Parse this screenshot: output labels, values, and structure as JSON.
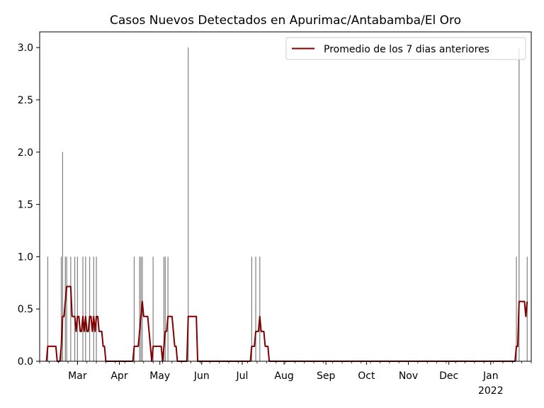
{
  "chart_data": {
    "type": "bar",
    "title": "Casos Nuevos Detectados en Apurimac/Antabamba/El Oro",
    "xlabel": "",
    "ylabel": "",
    "xlim": [
      "2021-02-01",
      "2022-01-31"
    ],
    "ylim": [
      0,
      3.15
    ],
    "y_ticks": [
      0.0,
      0.5,
      1.0,
      1.5,
      2.0,
      2.5,
      3.0
    ],
    "y_tick_labels": [
      "0.0",
      "0.5",
      "1.0",
      "1.5",
      "2.0",
      "2.5",
      "3.0"
    ],
    "x_ticks": [
      {
        "date": "2021-03-01",
        "label": "Mar"
      },
      {
        "date": "2021-04-01",
        "label": "Apr"
      },
      {
        "date": "2021-05-01",
        "label": "May"
      },
      {
        "date": "2021-06-01",
        "label": "Jun"
      },
      {
        "date": "2021-07-01",
        "label": "Jul"
      },
      {
        "date": "2021-08-01",
        "label": "Aug"
      },
      {
        "date": "2021-09-01",
        "label": "Sep"
      },
      {
        "date": "2021-10-01",
        "label": "Oct"
      },
      {
        "date": "2021-11-01",
        "label": "Nov"
      },
      {
        "date": "2021-12-01",
        "label": "Dec"
      },
      {
        "date": "2022-01-01",
        "label": "Jan",
        "sublabel": "2022"
      }
    ],
    "bar_color": "#808080",
    "line_color": "#800000",
    "legend": {
      "position": "upper right",
      "label": "Promedio de los 7 dias anteriores"
    },
    "daily_cases": [
      {
        "date": "2021-02-07",
        "value": 1
      },
      {
        "date": "2021-02-17",
        "value": 1
      },
      {
        "date": "2021-02-18",
        "value": 2
      },
      {
        "date": "2021-02-20",
        "value": 1
      },
      {
        "date": "2021-02-21",
        "value": 1
      },
      {
        "date": "2021-02-24",
        "value": 1
      },
      {
        "date": "2021-02-27",
        "value": 1
      },
      {
        "date": "2021-03-01",
        "value": 1
      },
      {
        "date": "2021-03-05",
        "value": 1
      },
      {
        "date": "2021-03-07",
        "value": 1
      },
      {
        "date": "2021-03-10",
        "value": 1
      },
      {
        "date": "2021-03-13",
        "value": 1
      },
      {
        "date": "2021-03-15",
        "value": 1
      },
      {
        "date": "2021-04-12",
        "value": 1
      },
      {
        "date": "2021-04-16",
        "value": 1
      },
      {
        "date": "2021-04-17",
        "value": 1
      },
      {
        "date": "2021-04-18",
        "value": 1
      },
      {
        "date": "2021-04-26",
        "value": 1
      },
      {
        "date": "2021-05-04",
        "value": 1
      },
      {
        "date": "2021-05-05",
        "value": 1
      },
      {
        "date": "2021-05-07",
        "value": 1
      },
      {
        "date": "2021-05-22",
        "value": 3
      },
      {
        "date": "2021-07-08",
        "value": 1
      },
      {
        "date": "2021-07-11",
        "value": 1
      },
      {
        "date": "2021-07-14",
        "value": 1
      },
      {
        "date": "2022-01-20",
        "value": 1
      },
      {
        "date": "2022-01-22",
        "value": 3
      },
      {
        "date": "2022-01-28",
        "value": 1
      }
    ],
    "avg_start": "2021-02-06",
    "avg_end": "2022-01-28"
  }
}
